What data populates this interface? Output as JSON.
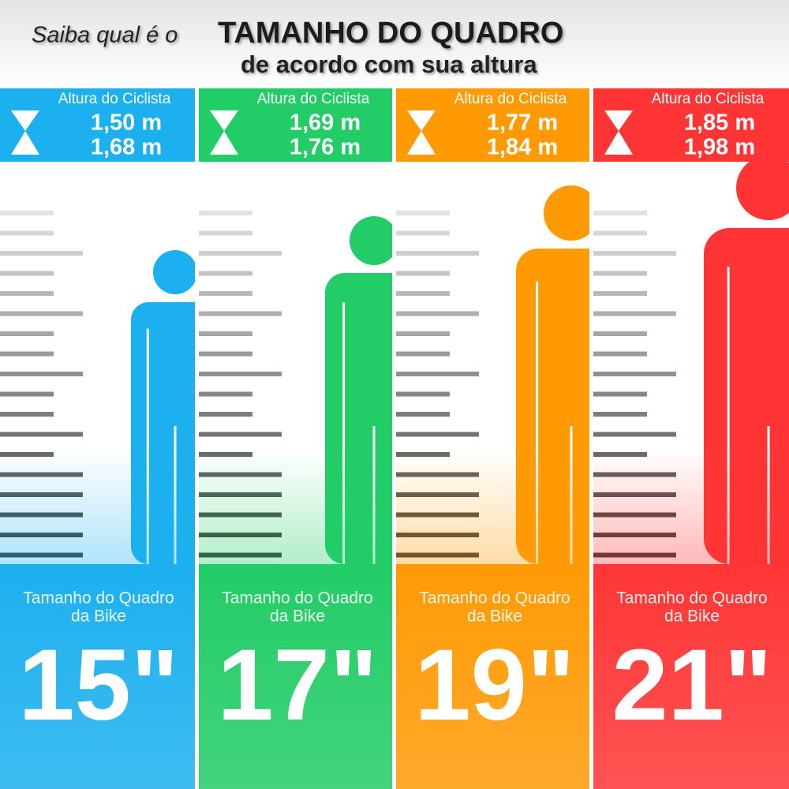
{
  "header": {
    "lead": "Saiba qual é o",
    "title": "TAMANHO DO QUADRO",
    "subtitle": "de acordo com sua altura"
  },
  "columns": [
    {
      "height_label": "Altura do Ciclista",
      "height_min": "1,50 m",
      "height_max": "1,68 m",
      "frame_label_1": "Tamanho do Quadro",
      "frame_label_2": "da Bike",
      "frame_size": "15\"",
      "color": "#1cb0ef"
    },
    {
      "height_label": "Altura do Ciclista",
      "height_min": "1,69 m",
      "height_max": "1,76 m",
      "frame_label_1": "Tamanho do Quadro",
      "frame_label_2": "da Bike",
      "frame_size": "17\"",
      "color": "#22cc66"
    },
    {
      "height_label": "Altura do Ciclista",
      "height_min": "1,77 m",
      "height_max": "1,84 m",
      "frame_label_1": "Tamanho do Quadro",
      "frame_label_2": "da Bike",
      "frame_size": "19\"",
      "color": "#ff9a05"
    },
    {
      "height_label": "Altura do Ciclista",
      "height_min": "1,85 m",
      "height_max": "1,98 m",
      "frame_label_1": "Tamanho do Quadro",
      "frame_label_2": "da Bike",
      "frame_size": "21\"",
      "color": "#ff3535"
    }
  ]
}
